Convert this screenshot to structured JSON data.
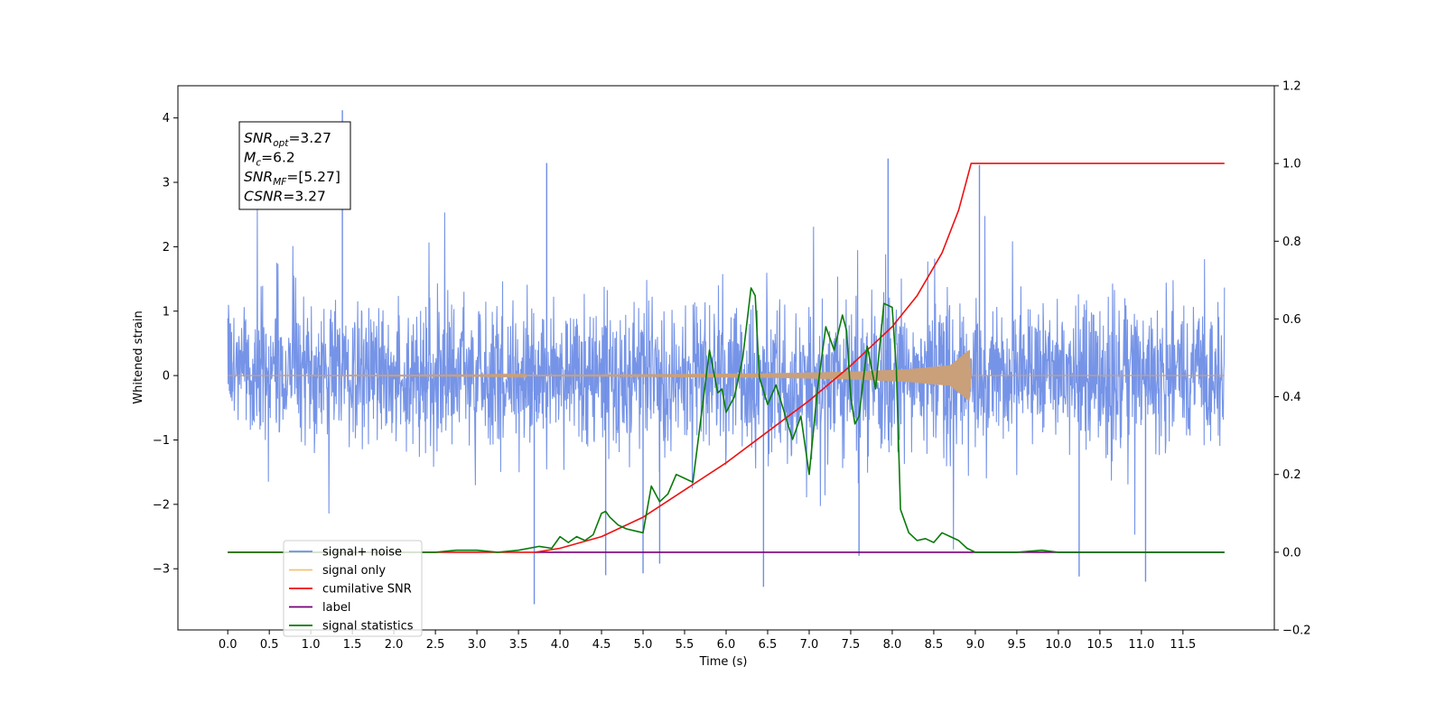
{
  "chart_data": {
    "type": "line",
    "title": "",
    "xlabel": "Time (s)",
    "ylabel": "Whitened strain",
    "y2label": "",
    "xlim": [
      -0.6,
      12.6
    ],
    "ylim": [
      -3.95,
      4.5
    ],
    "y2lim": [
      -0.2,
      1.2
    ],
    "x_ticks": [
      0.0,
      0.5,
      1.0,
      1.5,
      2.0,
      2.5,
      3.0,
      3.5,
      4.0,
      4.5,
      5.0,
      5.5,
      6.0,
      6.5,
      7.0,
      7.5,
      8.0,
      8.5,
      9.0,
      9.5,
      10.0,
      10.5,
      11.0,
      11.5
    ],
    "x_tick_labels": [
      "0.0",
      "0.5",
      "1.0",
      "1.5",
      "2.0",
      "2.5",
      "3.0",
      "3.5",
      "4.0",
      "4.5",
      "5.0",
      "5.5",
      "6.0",
      "6.5",
      "7.0",
      "7.5",
      "8.0",
      "8.5",
      "9.0",
      "9.5",
      "10.0",
      "10.5",
      "11.0",
      "11.5"
    ],
    "y_ticks": [
      -3,
      -2,
      -1,
      0,
      1,
      2,
      3,
      4
    ],
    "y_tick_labels": [
      "−3",
      "−2",
      "−1",
      "0",
      "1",
      "2",
      "3",
      "4"
    ],
    "y2_ticks": [
      -0.2,
      0.0,
      0.2,
      0.4,
      0.6,
      0.8,
      1.0,
      1.2
    ],
    "y2_tick_labels": [
      "−0.2",
      "0.0",
      "0.2",
      "0.4",
      "0.6",
      "0.8",
      "1.0",
      "1.2"
    ],
    "grid": false,
    "legend_position": "bottom-left",
    "annotation": {
      "lines": [
        {
          "main": "SNR",
          "sub": "opt",
          "rest": "=3.27"
        },
        {
          "main": "M",
          "sub": "c",
          "rest": "=6.2"
        },
        {
          "main": "SNR",
          "sub": "MF",
          "rest": "=[5.27]"
        },
        {
          "main": "CSNR",
          "sub": "",
          "rest": "=3.27"
        }
      ]
    },
    "series": [
      {
        "name": "signal+ noise",
        "color": "#6f8ee6",
        "axis": "left",
        "kind": "noise",
        "x_range": [
          0.0,
          12.0
        ],
        "typical_range": [
          -1.5,
          1.5
        ],
        "spikes": [
          {
            "x": 1.38,
            "y": 4.12
          },
          {
            "x": 3.84,
            "y": 3.3
          },
          {
            "x": 7.95,
            "y": 3.37
          },
          {
            "x": 9.05,
            "y": 3.27
          },
          {
            "x": 3.69,
            "y": -3.55
          },
          {
            "x": 6.45,
            "y": -3.28
          },
          {
            "x": 11.05,
            "y": -3.2
          },
          {
            "x": 10.25,
            "y": -3.12
          },
          {
            "x": 4.55,
            "y": -3.1
          },
          {
            "x": 5.0,
            "y": -3.07
          },
          {
            "x": 5.2,
            "y": -2.92
          },
          {
            "x": 7.6,
            "y": -2.8
          }
        ]
      },
      {
        "name": "signal only",
        "color": "#f2a24a",
        "axis": "left",
        "kind": "chirp",
        "envelope": {
          "x": [
            0.0,
            3.0,
            5.0,
            6.5,
            7.5,
            8.2,
            8.7,
            8.93,
            8.95,
            12.0
          ],
          "amp": [
            0.0,
            0.005,
            0.02,
            0.035,
            0.06,
            0.1,
            0.16,
            0.4,
            0.0,
            0.0
          ]
        }
      },
      {
        "name": "cumilative SNR",
        "color": "#ee1111",
        "axis": "right",
        "x": [
          0.0,
          3.7,
          4.0,
          4.5,
          5.0,
          5.5,
          6.0,
          6.5,
          7.0,
          7.5,
          8.0,
          8.3,
          8.6,
          8.8,
          8.9,
          8.95,
          12.0
        ],
        "y": [
          0.0,
          0.0,
          0.01,
          0.04,
          0.09,
          0.16,
          0.23,
          0.31,
          0.39,
          0.48,
          0.58,
          0.66,
          0.77,
          0.88,
          0.96,
          1.0,
          1.0
        ]
      },
      {
        "name": "label",
        "color": "#780078",
        "axis": "right",
        "x": [
          3.7,
          12.0
        ],
        "y": [
          0.0,
          0.0
        ]
      },
      {
        "name": "signal statistics",
        "color": "#0a7a0a",
        "axis": "right",
        "x": [
          0.0,
          2.5,
          2.75,
          3.0,
          3.25,
          3.5,
          3.75,
          3.9,
          4.0,
          4.1,
          4.2,
          4.3,
          4.4,
          4.5,
          4.55,
          4.6,
          4.7,
          4.8,
          4.9,
          5.0,
          5.1,
          5.2,
          5.3,
          5.4,
          5.5,
          5.6,
          5.7,
          5.8,
          5.9,
          5.95,
          6.0,
          6.1,
          6.2,
          6.3,
          6.35,
          6.4,
          6.5,
          6.6,
          6.7,
          6.8,
          6.9,
          7.0,
          7.1,
          7.2,
          7.3,
          7.4,
          7.45,
          7.5,
          7.55,
          7.6,
          7.7,
          7.8,
          7.9,
          8.0,
          8.05,
          8.1,
          8.2,
          8.3,
          8.4,
          8.5,
          8.6,
          8.7,
          8.8,
          8.9,
          9.0,
          9.5,
          9.8,
          10.0,
          12.0
        ],
        "y": [
          0.0,
          0.0,
          0.005,
          0.005,
          0.0,
          0.005,
          0.015,
          0.01,
          0.04,
          0.025,
          0.04,
          0.03,
          0.045,
          0.1,
          0.105,
          0.09,
          0.07,
          0.06,
          0.055,
          0.05,
          0.17,
          0.13,
          0.15,
          0.2,
          0.19,
          0.18,
          0.35,
          0.52,
          0.41,
          0.42,
          0.36,
          0.4,
          0.5,
          0.68,
          0.66,
          0.45,
          0.38,
          0.43,
          0.36,
          0.29,
          0.35,
          0.2,
          0.42,
          0.58,
          0.52,
          0.61,
          0.57,
          0.4,
          0.33,
          0.35,
          0.53,
          0.42,
          0.64,
          0.63,
          0.47,
          0.11,
          0.05,
          0.03,
          0.035,
          0.025,
          0.05,
          0.04,
          0.03,
          0.01,
          0.0,
          0.0,
          0.005,
          0.0,
          0.0
        ]
      }
    ],
    "legend": [
      "signal+ noise",
      "signal only",
      "cumilative SNR",
      "label",
      "signal statistics"
    ]
  }
}
